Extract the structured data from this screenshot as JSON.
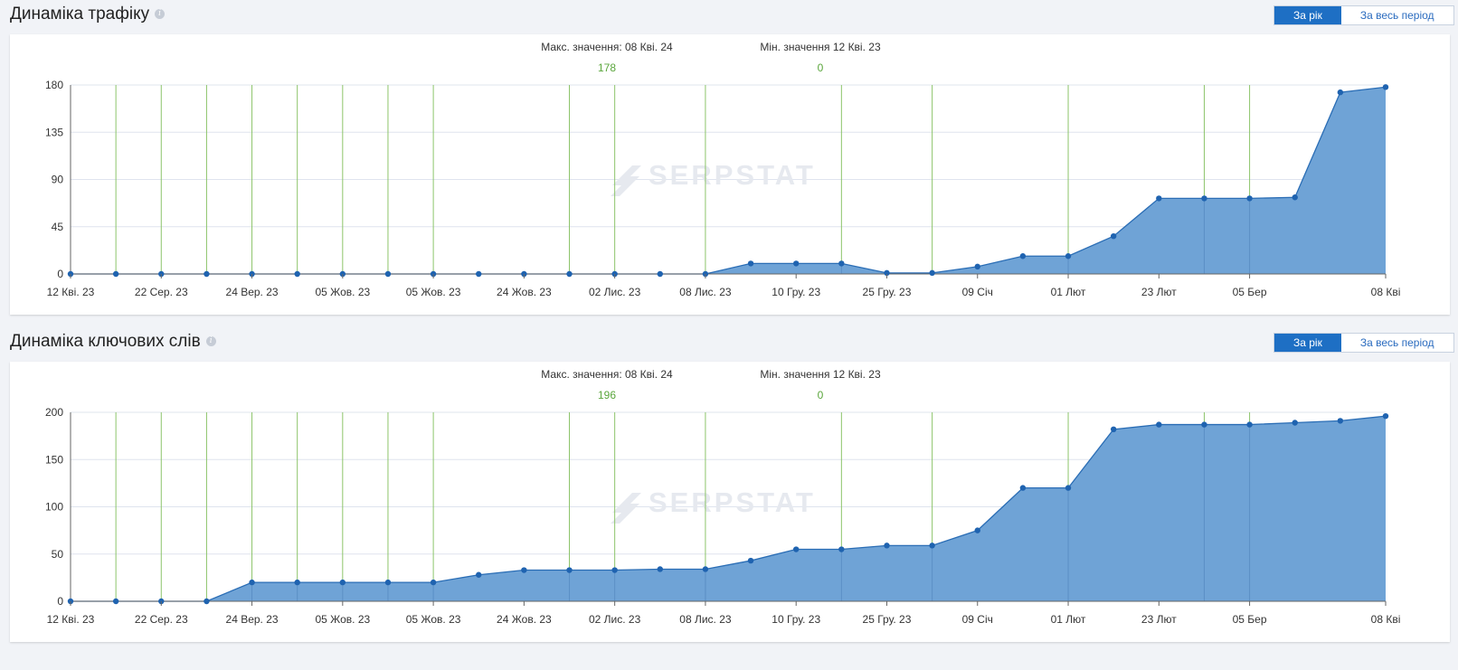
{
  "sections": [
    {
      "title": "Динаміка трафіку",
      "toggle": {
        "year": "За рік",
        "all": "За весь період"
      },
      "max_label": "Макс. значення: 08 Кві. 24",
      "max_value": "178",
      "min_label": "Мін. значення 12 Кві. 23",
      "min_value": "0",
      "watermark": "SERPSTAT"
    },
    {
      "title": "Динаміка ключових слів",
      "toggle": {
        "year": "За рік",
        "all": "За весь період"
      },
      "max_label": "Макс. значення: 08 Кві. 24",
      "max_value": "196",
      "min_label": "Мін. значення 12 Кві. 23",
      "min_value": "0",
      "watermark": "SERPSTAT"
    }
  ],
  "colors": {
    "area": "#6fa3d6",
    "line": "#2a6db5",
    "point": "#1f63b0",
    "vline": "#8cc46a",
    "grid": "#dfe4ee",
    "stat_value": "#5aa63c",
    "active_toggle": "#1e6fc4"
  },
  "chart_data": [
    {
      "type": "area",
      "title": "",
      "x_tick_labels": [
        "12 Кві. 23",
        "22 Сер. 23",
        "24 Вер. 23",
        "05 Жов. 23",
        "05 Жов. 23",
        "24 Жов. 23",
        "02 Лис. 23",
        "08 Лис. 23",
        "10 Гру. 23",
        "25 Гру. 23",
        "09 Січ",
        "01 Лют",
        "23 Лют",
        "05 Бер",
        "08 Кві"
      ],
      "x_tick_index": [
        0,
        2,
        4,
        6,
        8,
        10,
        12,
        14,
        16,
        18,
        20,
        22,
        24,
        26,
        29
      ],
      "y_ticks": [
        0,
        45,
        90,
        135,
        180
      ],
      "ylim": [
        0,
        180
      ],
      "grid": true,
      "values": [
        0,
        0,
        0,
        0,
        0,
        0,
        0,
        0,
        0,
        0,
        0,
        0,
        0,
        0,
        0,
        10,
        10,
        10,
        1,
        1,
        7,
        17,
        17,
        36,
        72,
        72,
        72,
        73,
        173,
        178
      ],
      "update_markers": [
        1,
        2,
        3,
        4,
        5,
        6,
        7,
        8,
        11,
        12,
        14,
        17,
        19,
        22,
        25,
        26
      ]
    },
    {
      "type": "area",
      "title": "",
      "x_tick_labels": [
        "12 Кві. 23",
        "22 Сер. 23",
        "24 Вер. 23",
        "05 Жов. 23",
        "05 Жов. 23",
        "24 Жов. 23",
        "02 Лис. 23",
        "08 Лис. 23",
        "10 Гру. 23",
        "25 Гру. 23",
        "09 Січ",
        "01 Лют",
        "23 Лют",
        "05 Бер",
        "08 Кві"
      ],
      "x_tick_index": [
        0,
        2,
        4,
        6,
        8,
        10,
        12,
        14,
        16,
        18,
        20,
        22,
        24,
        26,
        29
      ],
      "y_ticks": [
        0,
        50,
        100,
        150,
        200
      ],
      "ylim": [
        0,
        200
      ],
      "grid": true,
      "values": [
        0,
        0,
        0,
        0,
        20,
        20,
        20,
        20,
        20,
        28,
        33,
        33,
        33,
        34,
        34,
        43,
        55,
        55,
        59,
        59,
        75,
        120,
        120,
        182,
        187,
        187,
        187,
        189,
        191,
        196
      ],
      "update_markers": [
        1,
        2,
        3,
        4,
        5,
        6,
        7,
        8,
        11,
        12,
        14,
        17,
        19,
        22,
        25,
        26
      ]
    }
  ]
}
